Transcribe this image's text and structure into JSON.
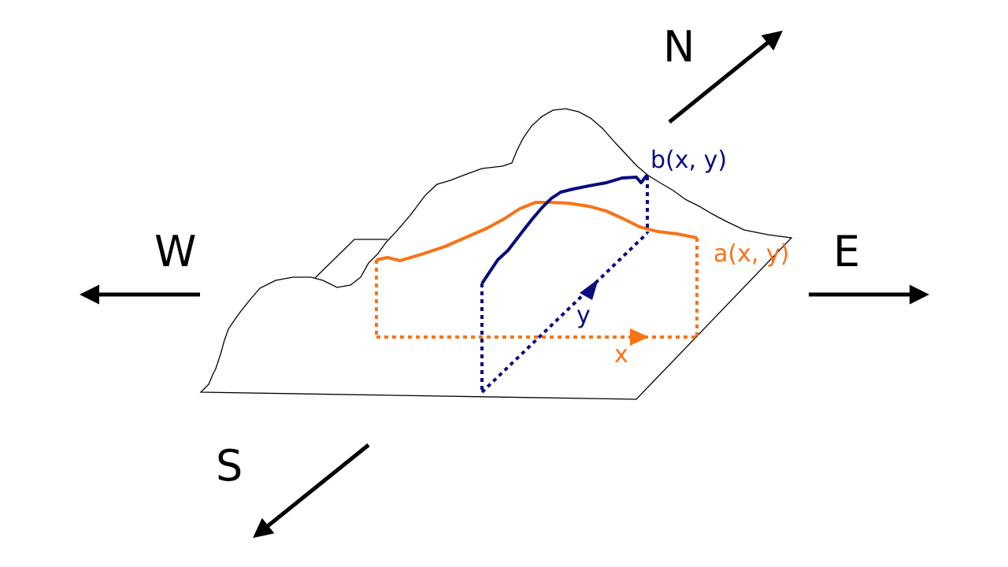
{
  "compass": {
    "north": "N",
    "south": "S",
    "east": "E",
    "west": "W"
  },
  "curves": {
    "a": {
      "label": "a(x, y)",
      "color": "#f97316"
    },
    "b": {
      "label": "b(x, y)",
      "color": "#0b0b7e"
    }
  },
  "axes": {
    "x": {
      "label": "x",
      "color": "#f97316"
    },
    "y": {
      "label": "y",
      "color": "#0b0b7e"
    }
  },
  "colors": {
    "terrain": "#000000",
    "arrows": "#000000"
  }
}
